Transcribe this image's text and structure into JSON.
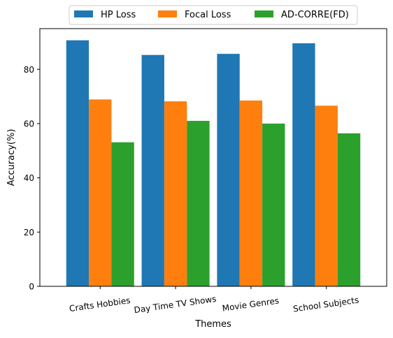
{
  "chart_data": {
    "type": "bar",
    "title": "",
    "xlabel": "Themes",
    "ylabel": "Accuracy(%)",
    "categories": [
      "Crafts Hobbies",
      "Day Time TV Shows",
      "Movie Genres",
      "School Subjects"
    ],
    "series": [
      {
        "name": "HP Loss",
        "color": "#1f77b4",
        "values": [
          90.7,
          85.3,
          85.7,
          89.6
        ]
      },
      {
        "name": "Focal Loss",
        "color": "#ff7f0e",
        "values": [
          68.9,
          68.2,
          68.5,
          66.6
        ]
      },
      {
        "name": "AD-CORRE(FD)",
        "color": "#2ca02c",
        "values": [
          53.1,
          61.0,
          60.0,
          56.4
        ]
      }
    ],
    "ylim": [
      0,
      95
    ],
    "yticks": [
      0,
      20,
      40,
      60,
      80
    ],
    "grid": false,
    "legend_position": "top-center"
  }
}
